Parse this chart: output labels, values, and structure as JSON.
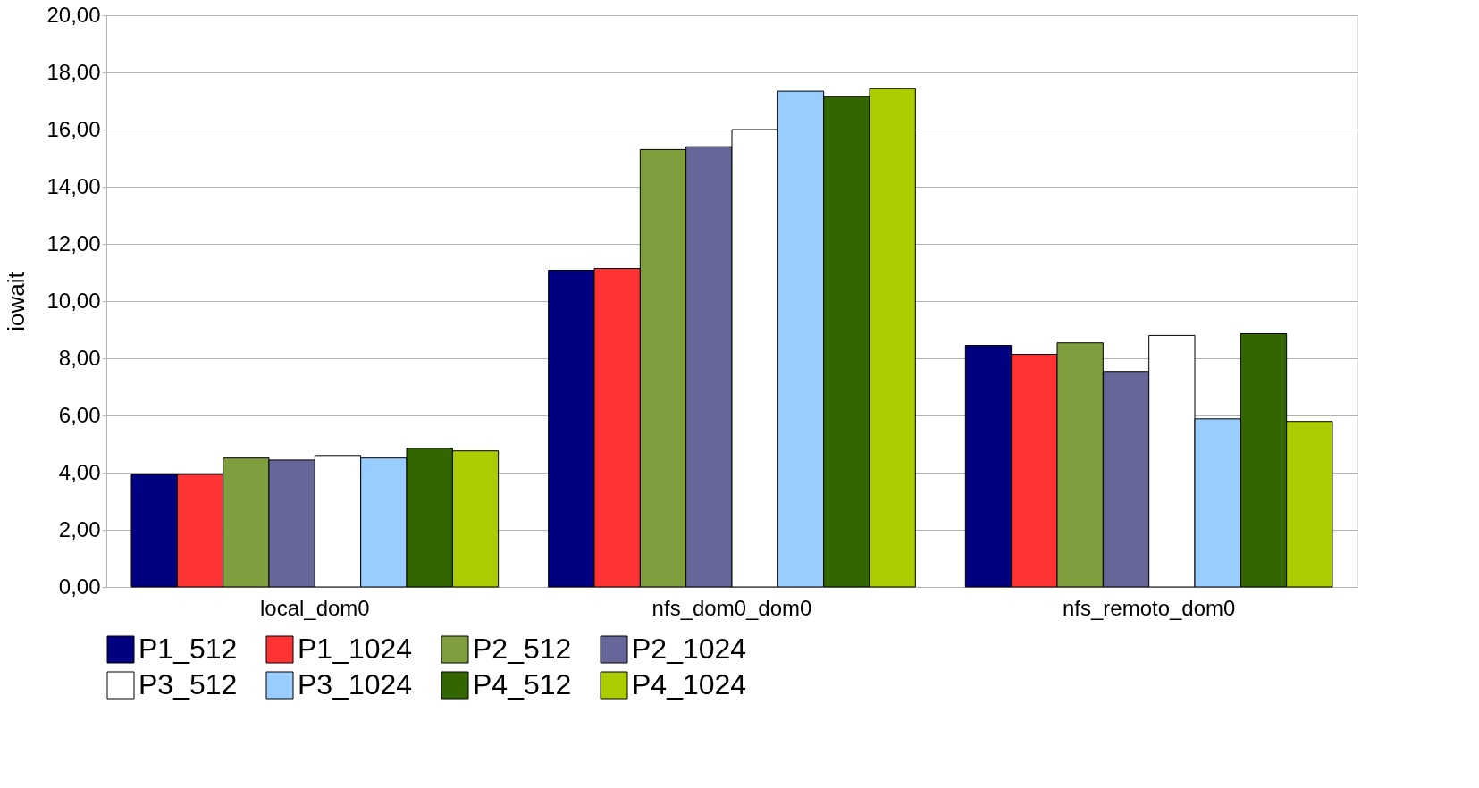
{
  "chart_data": {
    "type": "bar",
    "ylabel": "iowait",
    "categories": [
      "local_dom0",
      "nfs_dom0_dom0",
      "nfs_remoto_dom0"
    ],
    "series": [
      {
        "name": "P1_512",
        "color": "#000080",
        "values": [
          3.94,
          11.08,
          8.45
        ]
      },
      {
        "name": "P1_1024",
        "color": "#ff3333",
        "values": [
          3.94,
          11.14,
          8.14
        ]
      },
      {
        "name": "P2_512",
        "color": "#7f9f3f",
        "values": [
          4.51,
          15.3,
          8.54
        ]
      },
      {
        "name": "P2_1024",
        "color": "#666699",
        "values": [
          4.44,
          15.4,
          7.54
        ]
      },
      {
        "name": "P3_512",
        "color": "#ffffff",
        "values": [
          4.6,
          16.0,
          8.8
        ]
      },
      {
        "name": "P3_1024",
        "color": "#99ccff",
        "values": [
          4.51,
          17.34,
          5.88
        ]
      },
      {
        "name": "P4_512",
        "color": "#336600",
        "values": [
          4.85,
          17.15,
          8.86
        ]
      },
      {
        "name": "P4_1024",
        "color": "#aacc00",
        "values": [
          4.76,
          17.43,
          5.79
        ]
      }
    ],
    "ylim": [
      0,
      20
    ],
    "yticks": [
      {
        "value": 0,
        "label": "0,00"
      },
      {
        "value": 2,
        "label": "2,00"
      },
      {
        "value": 4,
        "label": "4,00"
      },
      {
        "value": 6,
        "label": "6,00"
      },
      {
        "value": 8,
        "label": "8,00"
      },
      {
        "value": 10,
        "label": "10,00"
      },
      {
        "value": 12,
        "label": "12,00"
      },
      {
        "value": 14,
        "label": "14,00"
      },
      {
        "value": 16,
        "label": "16,00"
      },
      {
        "value": 18,
        "label": "18,00"
      },
      {
        "value": 20,
        "label": "20,00"
      }
    ],
    "grid": "y",
    "legend": "bottom"
  }
}
